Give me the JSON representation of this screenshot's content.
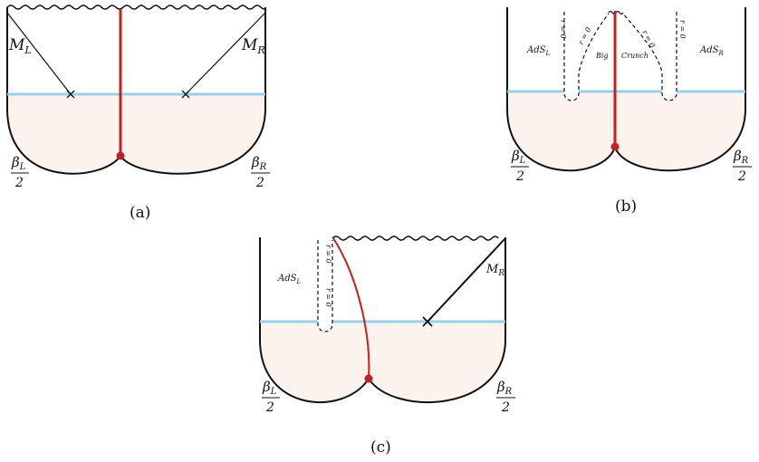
{
  "panel_a": {
    "caption": "(a)",
    "label_left": "M",
    "label_left_sub": "L",
    "label_right": "M",
    "label_right_sub": "R",
    "beta_left": "β",
    "beta_left_sub": "L",
    "beta_right": "β",
    "beta_right_sub": "R",
    "denominator": "2"
  },
  "panel_b": {
    "caption": "(b)",
    "region_left": "AdS",
    "region_left_sub": "L",
    "region_right": "AdS",
    "region_right_sub": "R",
    "big": "Big",
    "crunch": "Crunch",
    "r_eq_0": "r = 0",
    "beta_left": "β",
    "beta_left_sub": "L",
    "beta_right": "β",
    "beta_right_sub": "R",
    "denominator": "2"
  },
  "panel_c": {
    "caption": "(c)",
    "region_left": "AdS",
    "region_left_sub": "L",
    "label_right": "M",
    "label_right_sub": "R",
    "r_eq_0": "r = 0",
    "beta_left": "β",
    "beta_left_sub": "L",
    "beta_right": "β",
    "beta_right_sub": "R",
    "denominator": "2"
  },
  "colors": {
    "ink": "#111111",
    "horizon": "#8fd3ef",
    "brane": "#c81e1e",
    "euclid_fill": "#fdf3ee"
  }
}
